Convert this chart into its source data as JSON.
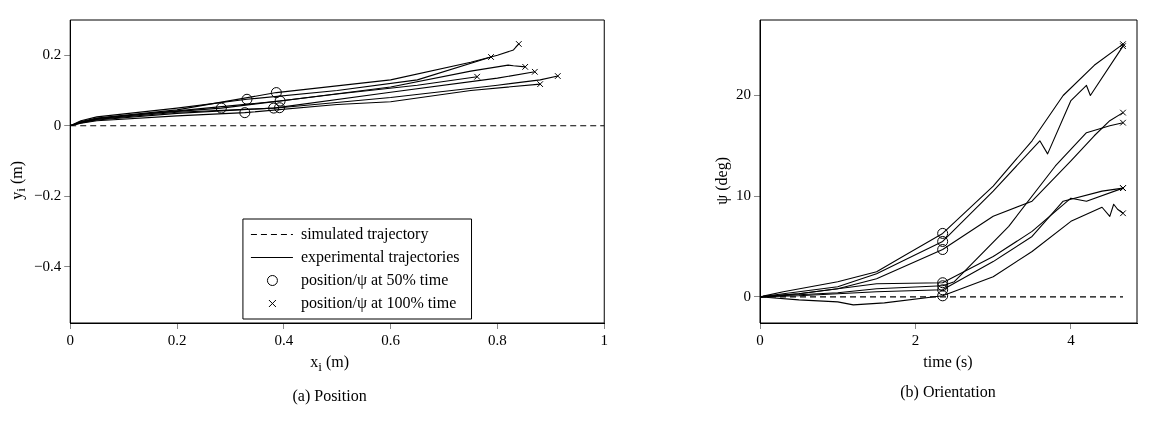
{
  "chart_data": [
    {
      "type": "line",
      "title": "(a) Position",
      "xlabel": "x$_{i}$ (m)",
      "ylabel": "y$_{i}$ (m)",
      "xlim": [
        0,
        1
      ],
      "ylim": [
        -0.56,
        0.3
      ],
      "xticks": [
        0,
        0.2,
        0.4,
        0.6,
        0.8,
        1
      ],
      "yticks": [
        -0.4,
        -0.2,
        0,
        0.2
      ],
      "grid": false,
      "legend": "bottom",
      "series": [
        {
          "name": "simulated trajectory",
          "color": "#000000",
          "line_style": "dashed",
          "x": [
            0,
            1
          ],
          "values": [
            0,
            0
          ]
        },
        {
          "name": "experimental trajectories",
          "color": "#000000",
          "line_style": "solid",
          "x": [
            0,
            0.02,
            0.05,
            0.2,
            0.386,
            0.6,
            0.75,
            0.8,
            0.83,
            0.84
          ],
          "values": [
            0,
            0.012,
            0.022,
            0.045,
            0.094,
            0.13,
            0.18,
            0.2,
            0.215,
            0.232
          ]
        },
        {
          "color": "#000000",
          "line_style": "solid",
          "x": [
            0,
            0.02,
            0.05,
            0.2,
            0.331,
            0.5,
            0.65,
            0.788
          ],
          "values": [
            0,
            0.014,
            0.025,
            0.05,
            0.075,
            0.1,
            0.13,
            0.195
          ]
        },
        {
          "color": "#000000",
          "line_style": "solid",
          "x": [
            0,
            0.02,
            0.05,
            0.2,
            0.393,
            0.6,
            0.75,
            0.82,
            0.83,
            0.852
          ],
          "values": [
            0,
            0.01,
            0.02,
            0.042,
            0.07,
            0.11,
            0.155,
            0.172,
            0.17,
            0.167
          ]
        },
        {
          "color": "#000000",
          "line_style": "solid",
          "x": [
            0,
            0.02,
            0.05,
            0.2,
            0.381,
            0.6,
            0.8,
            0.87
          ],
          "values": [
            0,
            0.009,
            0.018,
            0.038,
            0.05,
            0.095,
            0.135,
            0.153
          ]
        },
        {
          "color": "#000000",
          "line_style": "solid",
          "x": [
            0,
            0.02,
            0.05,
            0.15,
            0.283,
            0.5,
            0.65,
            0.762
          ],
          "values": [
            0,
            0.01,
            0.02,
            0.035,
            0.05,
            0.09,
            0.115,
            0.139
          ]
        },
        {
          "color": "#000000",
          "line_style": "solid",
          "x": [
            0,
            0.02,
            0.05,
            0.2,
            0.392,
            0.6,
            0.8,
            0.88,
            0.913
          ],
          "values": [
            0,
            0.008,
            0.016,
            0.035,
            0.051,
            0.08,
            0.115,
            0.13,
            0.141
          ]
        },
        {
          "color": "#000000",
          "line_style": "solid",
          "x": [
            0,
            0.02,
            0.05,
            0.2,
            0.327,
            0.5,
            0.6,
            0.75,
            0.88
          ],
          "values": [
            0,
            0.007,
            0.014,
            0.028,
            0.037,
            0.06,
            0.068,
            0.1,
            0.118
          ]
        },
        {
          "name": "position/ψ at 50% time",
          "type": "scatter",
          "marker": "circle",
          "color": "#000000",
          "x": [
            0.386,
            0.331,
            0.393,
            0.381,
            0.283,
            0.392,
            0.327
          ],
          "values": [
            0.094,
            0.075,
            0.07,
            0.05,
            0.05,
            0.051,
            0.037
          ]
        },
        {
          "name": "position/ψ at 100% time",
          "type": "scatter",
          "marker": "cross",
          "color": "#000000",
          "x": [
            0.84,
            0.788,
            0.852,
            0.87,
            0.762,
            0.913,
            0.88
          ],
          "values": [
            0.232,
            0.195,
            0.167,
            0.153,
            0.139,
            0.141,
            0.118
          ]
        }
      ]
    },
    {
      "type": "line",
      "title": "(b) Orientation",
      "xlabel": "time (s)",
      "ylabel": "ψ (deg)",
      "xlim": [
        0,
        4.85
      ],
      "ylim": [
        -2.6,
        27.5
      ],
      "xticks": [
        0,
        2,
        4
      ],
      "yticks": [
        0,
        10,
        20
      ],
      "grid": false,
      "series": [
        {
          "color": "#000000",
          "line_style": "dashed",
          "x": [
            0,
            4.67
          ],
          "values": [
            0,
            0
          ]
        },
        {
          "color": "#000000",
          "line_style": "solid",
          "x": [
            0,
            0.3,
            1,
            1.5,
            2.35,
            3,
            3.5,
            3.9,
            4.3,
            4.67
          ],
          "values": [
            0,
            0.5,
            1.5,
            2.5,
            6.3,
            11,
            15.5,
            20,
            23,
            25.1
          ]
        },
        {
          "color": "#000000",
          "line_style": "solid",
          "x": [
            0,
            0.3,
            1,
            1.5,
            2.35,
            3,
            3.6,
            3.7,
            4,
            4.2,
            4.25,
            4.67
          ],
          "values": [
            0,
            0.3,
            1,
            2.3,
            5.5,
            10.5,
            15.5,
            14.2,
            19.5,
            21,
            20,
            24.9
          ]
        },
        {
          "color": "#000000",
          "line_style": "solid",
          "x": [
            0,
            0.5,
            1,
            1.5,
            2.35,
            3,
            3.5,
            4,
            4.3,
            4.5,
            4.67
          ],
          "values": [
            0,
            0.3,
            0.8,
            1.8,
            4.7,
            8,
            9.5,
            13.5,
            16,
            17.5,
            18.3
          ]
        },
        {
          "color": "#000000",
          "line_style": "solid",
          "x": [
            0,
            0.5,
            1,
            1.5,
            2.35,
            2.5,
            3.2,
            3.8,
            4.2,
            4.5,
            4.67
          ],
          "values": [
            0,
            0.2,
            0.4,
            0.8,
            1.1,
            1.5,
            7,
            13,
            16.3,
            17,
            17.3
          ]
        },
        {
          "color": "#000000",
          "line_style": "solid",
          "x": [
            0,
            0.5,
            1,
            1.5,
            2.35,
            3,
            3.5,
            4,
            4.2,
            4.67
          ],
          "values": [
            0,
            0.3,
            0.8,
            1.3,
            1.4,
            4,
            6.5,
            9.8,
            9.5,
            10.8
          ]
        },
        {
          "color": "#000000",
          "line_style": "solid",
          "x": [
            0,
            0.5,
            1,
            1.5,
            2.35,
            3,
            3.5,
            3.9,
            4.4,
            4.67
          ],
          "values": [
            0,
            0.1,
            0.3,
            0.5,
            0.7,
            3.5,
            6,
            9.5,
            10.5,
            10.8
          ]
        },
        {
          "color": "#000000",
          "line_style": "solid",
          "x": [
            0,
            0.5,
            1,
            1.2,
            1.6,
            2.35,
            3,
            3.5,
            4,
            4.4,
            4.5,
            4.55,
            4.6,
            4.67
          ],
          "values": [
            0,
            -0.3,
            -0.5,
            -0.8,
            -0.6,
            0.1,
            2,
            4.5,
            7.5,
            8.9,
            8,
            9.2,
            8.7,
            8.3
          ]
        },
        {
          "type": "scatter",
          "marker": "circle",
          "color": "#000000",
          "x": [
            2.35,
            2.35,
            2.35,
            2.35,
            2.35,
            2.35,
            2.35
          ],
          "values": [
            6.3,
            5.5,
            4.7,
            1.4,
            1.1,
            0.7,
            0.1
          ]
        },
        {
          "type": "scatter",
          "marker": "cross",
          "color": "#000000",
          "x": [
            4.67,
            4.67,
            4.67,
            4.67,
            4.67,
            4.67,
            4.67
          ],
          "values": [
            25.1,
            24.9,
            18.3,
            17.3,
            10.8,
            10.8,
            8.3
          ]
        }
      ]
    }
  ]
}
